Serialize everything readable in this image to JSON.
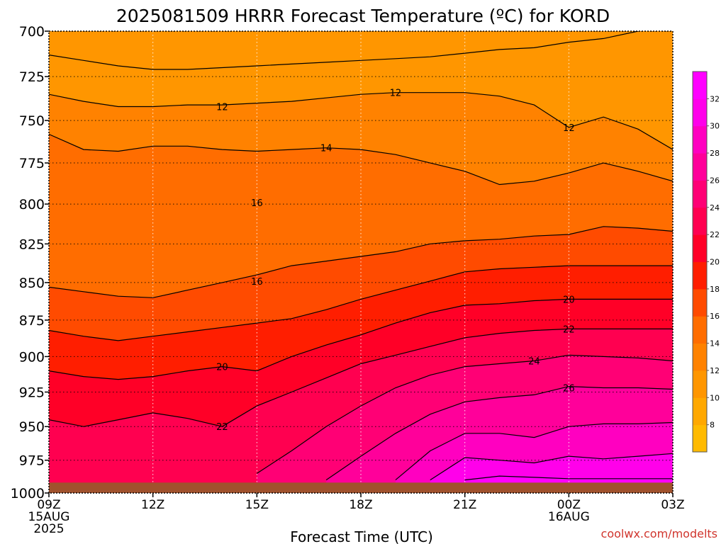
{
  "chart_data": {
    "type": "heatmap",
    "title": "2025081509 HRRR Forecast Temperature (ºC) for KORD",
    "xlabel": "Forecast Time (UTC)",
    "ylabel": "",
    "credit": "coolwx.com/modelts",
    "x_ticks": [
      {
        "hour": 0,
        "lines": [
          "09Z",
          "15AUG",
          "2025"
        ]
      },
      {
        "hour": 3,
        "lines": [
          "12Z"
        ]
      },
      {
        "hour": 6,
        "lines": [
          "15Z"
        ]
      },
      {
        "hour": 9,
        "lines": [
          "18Z"
        ]
      },
      {
        "hour": 12,
        "lines": [
          "21Z"
        ]
      },
      {
        "hour": 15,
        "lines": [
          "00Z",
          "16AUG"
        ]
      },
      {
        "hour": 18,
        "lines": [
          "03Z"
        ]
      }
    ],
    "xlim": [
      0,
      18
    ],
    "y_ticks": [
      700,
      725,
      750,
      775,
      800,
      825,
      850,
      875,
      900,
      925,
      950,
      975,
      1000
    ],
    "ylim": [
      1000,
      700
    ],
    "y_scale": "log-pressure",
    "colorbar": {
      "levels": [
        8,
        10,
        12,
        14,
        16,
        18,
        20,
        22,
        24,
        26,
        28,
        30,
        32
      ],
      "colors": [
        "#FFBA00",
        "#FFA800",
        "#FF9600",
        "#FF8200",
        "#FF6D00",
        "#FF4B00",
        "#FF1E00",
        "#FF0027",
        "#FF0050",
        "#FF0075",
        "#FF009A",
        "#FF00C0",
        "#FF00EA",
        "#FF00FF"
      ]
    },
    "surface_color": "#A0522D",
    "surface_pressure": 992,
    "isotherms": [
      {
        "level": 10,
        "points": [
          [
            0,
            713
          ],
          [
            1,
            716
          ],
          [
            2,
            719
          ],
          [
            3,
            721
          ],
          [
            4,
            721
          ],
          [
            5,
            720
          ],
          [
            6,
            719
          ],
          [
            7,
            718
          ],
          [
            8,
            717
          ],
          [
            9,
            716
          ],
          [
            10,
            715
          ],
          [
            11,
            714
          ],
          [
            12,
            712
          ],
          [
            13,
            710
          ],
          [
            14,
            709
          ],
          [
            15,
            706
          ],
          [
            16,
            704
          ],
          [
            17,
            700
          ],
          [
            18,
            696
          ]
        ]
      },
      {
        "level": 12,
        "points": [
          [
            0,
            735
          ],
          [
            1,
            739
          ],
          [
            2,
            742
          ],
          [
            3,
            742
          ],
          [
            4,
            741
          ],
          [
            5,
            741
          ],
          [
            6,
            740
          ],
          [
            7,
            739
          ],
          [
            8,
            737
          ],
          [
            9,
            735
          ],
          [
            10,
            734
          ],
          [
            11,
            734
          ],
          [
            12,
            734
          ],
          [
            13,
            736
          ],
          [
            14,
            741
          ],
          [
            15,
            754
          ],
          [
            16,
            748
          ],
          [
            17,
            755
          ],
          [
            18,
            767
          ]
        ]
      },
      {
        "level": 14,
        "points": [
          [
            0,
            758
          ],
          [
            1,
            767
          ],
          [
            2,
            768
          ],
          [
            3,
            765
          ],
          [
            4,
            765
          ],
          [
            5,
            767
          ],
          [
            6,
            768
          ],
          [
            7,
            767
          ],
          [
            8,
            766
          ],
          [
            9,
            767
          ],
          [
            10,
            770
          ],
          [
            11,
            775
          ],
          [
            12,
            780
          ],
          [
            13,
            788
          ],
          [
            14,
            786
          ],
          [
            15,
            781
          ],
          [
            16,
            775
          ],
          [
            17,
            780
          ],
          [
            18,
            786
          ]
        ]
      },
      {
        "level": 16,
        "points": [
          [
            0,
            853
          ],
          [
            1,
            856
          ],
          [
            2,
            859
          ],
          [
            3,
            860
          ],
          [
            4,
            855
          ],
          [
            5,
            850
          ],
          [
            6,
            845
          ],
          [
            7,
            839
          ],
          [
            8,
            836
          ],
          [
            9,
            833
          ],
          [
            10,
            830
          ],
          [
            11,
            825
          ],
          [
            12,
            823
          ],
          [
            13,
            822
          ],
          [
            14,
            820
          ],
          [
            15,
            819
          ],
          [
            16,
            814
          ],
          [
            17,
            815
          ],
          [
            18,
            817
          ]
        ]
      },
      {
        "level": 18,
        "points": [
          [
            0,
            882
          ],
          [
            1,
            886
          ],
          [
            2,
            889
          ],
          [
            3,
            886
          ],
          [
            4,
            883
          ],
          [
            5,
            880
          ],
          [
            6,
            877
          ],
          [
            7,
            874
          ],
          [
            8,
            868
          ],
          [
            9,
            861
          ],
          [
            10,
            855
          ],
          [
            11,
            849
          ],
          [
            12,
            843
          ],
          [
            13,
            841
          ],
          [
            14,
            840
          ],
          [
            15,
            839
          ],
          [
            16,
            839
          ],
          [
            17,
            839
          ],
          [
            18,
            839
          ]
        ]
      },
      {
        "level": 20,
        "points": [
          [
            0,
            910
          ],
          [
            1,
            914
          ],
          [
            2,
            916
          ],
          [
            3,
            914
          ],
          [
            4,
            910
          ],
          [
            5,
            907
          ],
          [
            6,
            910
          ],
          [
            7,
            900
          ],
          [
            8,
            892
          ],
          [
            9,
            885
          ],
          [
            10,
            877
          ],
          [
            11,
            870
          ],
          [
            12,
            865
          ],
          [
            13,
            864
          ],
          [
            14,
            862
          ],
          [
            15,
            861
          ],
          [
            16,
            861
          ],
          [
            17,
            861
          ],
          [
            18,
            861
          ]
        ]
      },
      {
        "level": 22,
        "points": [
          [
            0,
            945
          ],
          [
            1,
            950
          ],
          [
            2,
            945
          ],
          [
            3,
            940
          ],
          [
            4,
            944
          ],
          [
            5,
            950
          ],
          [
            6,
            935
          ],
          [
            7,
            925
          ],
          [
            8,
            915
          ],
          [
            9,
            905
          ],
          [
            10,
            899
          ],
          [
            11,
            893
          ],
          [
            12,
            887
          ],
          [
            13,
            884
          ],
          [
            14,
            882
          ],
          [
            15,
            881
          ],
          [
            16,
            881
          ],
          [
            17,
            881
          ],
          [
            18,
            881
          ]
        ]
      },
      {
        "level": 24,
        "points": [
          [
            6,
            985
          ],
          [
            7,
            968
          ],
          [
            8,
            950
          ],
          [
            9,
            935
          ],
          [
            10,
            922
          ],
          [
            11,
            913
          ],
          [
            12,
            907
          ],
          [
            13,
            905
          ],
          [
            14,
            903
          ],
          [
            15,
            899
          ],
          [
            16,
            900
          ],
          [
            17,
            901
          ],
          [
            18,
            903
          ]
        ]
      },
      {
        "level": 26,
        "points": [
          [
            8,
            990
          ],
          [
            9,
            972
          ],
          [
            10,
            955
          ],
          [
            11,
            941
          ],
          [
            12,
            932
          ],
          [
            13,
            929
          ],
          [
            14,
            927
          ],
          [
            15,
            921
          ],
          [
            16,
            922
          ],
          [
            17,
            922
          ],
          [
            18,
            923
          ]
        ]
      },
      {
        "level": 28,
        "points": [
          [
            10,
            990
          ],
          [
            11,
            968
          ],
          [
            12,
            955
          ],
          [
            13,
            955
          ],
          [
            14,
            958
          ],
          [
            15,
            950
          ],
          [
            16,
            948
          ],
          [
            17,
            948
          ],
          [
            18,
            947
          ]
        ]
      },
      {
        "level": 30,
        "points": [
          [
            11,
            990
          ],
          [
            12,
            973
          ],
          [
            13,
            975
          ],
          [
            14,
            977
          ],
          [
            15,
            972
          ],
          [
            16,
            974
          ],
          [
            17,
            972
          ],
          [
            18,
            970
          ]
        ]
      },
      {
        "level": 32,
        "points": [
          [
            12,
            990
          ],
          [
            13,
            987
          ],
          [
            14,
            988
          ],
          [
            15,
            989
          ],
          [
            16,
            989
          ],
          [
            17,
            989
          ],
          [
            18,
            989
          ]
        ]
      }
    ],
    "contour_labels": [
      {
        "hour": 5,
        "pressure": 742,
        "text": "12"
      },
      {
        "hour": 10,
        "pressure": 734,
        "text": "12"
      },
      {
        "hour": 15,
        "pressure": 754,
        "text": "12"
      },
      {
        "hour": 8,
        "pressure": 766,
        "text": "14"
      },
      {
        "hour": 6,
        "pressure": 799,
        "text": "16"
      },
      {
        "hour": 6,
        "pressure": 849,
        "text": "16"
      },
      {
        "hour": 15,
        "pressure": 861,
        "text": "20"
      },
      {
        "hour": 5,
        "pressure": 907,
        "text": "20"
      },
      {
        "hour": 15,
        "pressure": 881,
        "text": "22"
      },
      {
        "hour": 5,
        "pressure": 950,
        "text": "22"
      },
      {
        "hour": 14,
        "pressure": 903,
        "text": "24"
      },
      {
        "hour": 15,
        "pressure": 922,
        "text": "26"
      }
    ]
  }
}
